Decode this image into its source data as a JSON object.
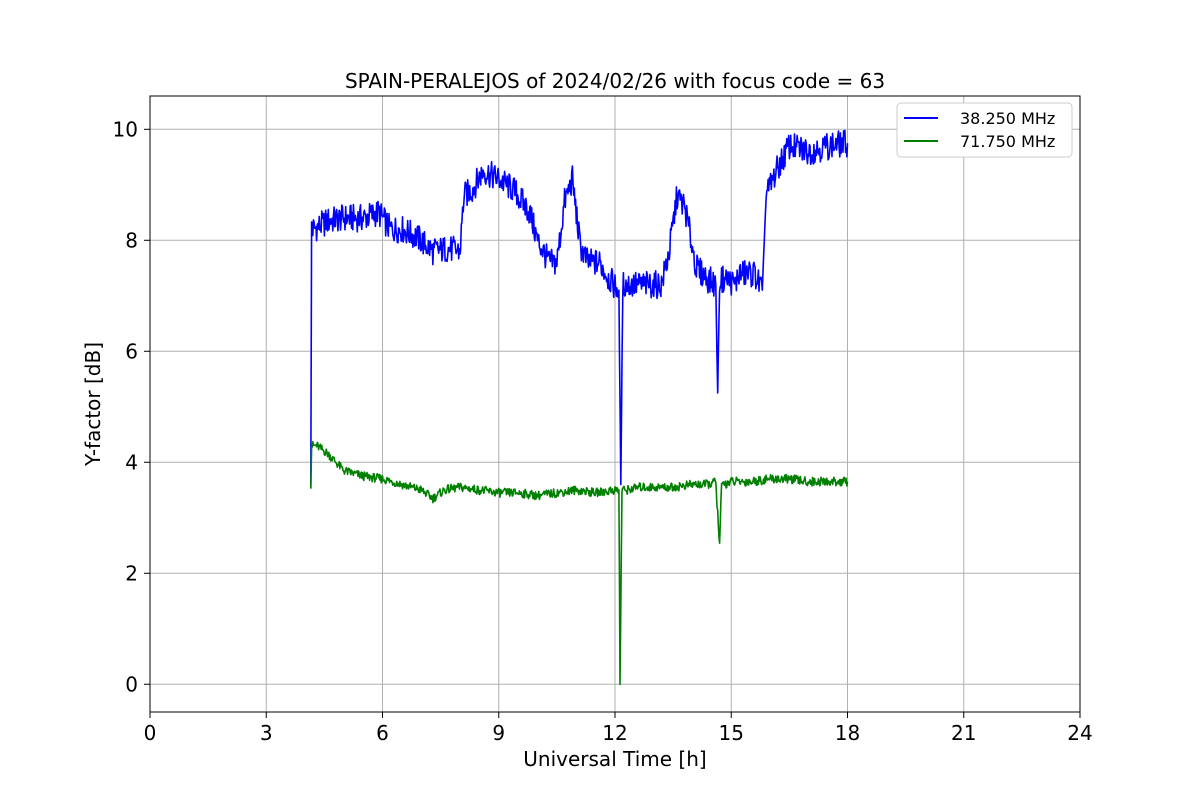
{
  "chart_data": {
    "type": "line",
    "title": "SPAIN-PERALEJOS of 2024/02/26 with focus code = 63",
    "xlabel": "Universal Time [h]",
    "ylabel": "Y-factor [dB]",
    "xlim": [
      0,
      24
    ],
    "ylim": [
      -0.5,
      10.6
    ],
    "xticks": [
      0,
      3,
      6,
      9,
      12,
      15,
      18,
      21,
      24
    ],
    "yticks": [
      0,
      2,
      4,
      6,
      8,
      10
    ],
    "grid": true,
    "legend_position": "top-right",
    "series": [
      {
        "name": "38.250 MHz",
        "color": "#0000ff",
        "x": [
          4.15,
          4.17,
          4.2,
          4.35,
          4.6,
          5.0,
          5.5,
          5.9,
          6.2,
          6.5,
          6.9,
          7.3,
          7.7,
          8.0,
          8.1,
          8.3,
          8.6,
          9.0,
          9.4,
          9.8,
          10.0,
          10.3,
          10.5,
          10.7,
          10.9,
          11.1,
          11.3,
          11.6,
          11.9,
          12.1,
          12.15,
          12.2,
          12.5,
          12.9,
          13.2,
          13.4,
          13.6,
          13.8,
          14.1,
          14.4,
          14.6,
          14.65,
          14.7,
          14.9,
          15.1,
          15.2,
          15.3,
          15.6,
          15.8,
          15.9,
          16.2,
          16.5,
          17.0,
          17.5,
          18.0
        ],
        "y": [
          3.55,
          8.3,
          8.2,
          8.25,
          8.35,
          8.4,
          8.4,
          8.5,
          8.2,
          8.2,
          8.05,
          7.8,
          7.85,
          7.8,
          8.8,
          8.9,
          9.25,
          9.1,
          8.9,
          8.5,
          8.0,
          7.6,
          7.6,
          8.7,
          9.1,
          7.9,
          7.6,
          7.6,
          7.25,
          7.1,
          3.6,
          7.2,
          7.2,
          7.2,
          7.2,
          7.8,
          8.8,
          8.6,
          7.5,
          7.3,
          7.2,
          5.25,
          7.3,
          7.3,
          7.2,
          7.4,
          7.4,
          7.4,
          7.1,
          8.8,
          9.3,
          9.7,
          9.6,
          9.7,
          9.75
        ]
      },
      {
        "name": "71.750 MHz",
        "color": "#008000",
        "x": [
          4.15,
          4.17,
          4.3,
          4.6,
          5.0,
          5.5,
          6.0,
          6.5,
          7.0,
          7.3,
          7.6,
          8.0,
          8.5,
          9.0,
          9.5,
          10.0,
          10.5,
          11.0,
          11.5,
          12.0,
          12.1,
          12.13,
          12.18,
          12.3,
          12.6,
          13.0,
          13.5,
          14.0,
          14.4,
          14.6,
          14.7,
          14.75,
          14.8,
          15.0,
          15.5,
          16.0,
          16.5,
          17.0,
          17.5,
          18.0
        ],
        "y": [
          3.6,
          4.3,
          4.3,
          4.15,
          3.85,
          3.75,
          3.7,
          3.6,
          3.5,
          3.35,
          3.5,
          3.55,
          3.5,
          3.45,
          3.45,
          3.4,
          3.45,
          3.5,
          3.45,
          3.5,
          3.5,
          0.0,
          3.5,
          3.5,
          3.55,
          3.55,
          3.55,
          3.6,
          3.6,
          3.65,
          2.5,
          3.6,
          3.6,
          3.65,
          3.65,
          3.7,
          3.7,
          3.65,
          3.65,
          3.65
        ]
      }
    ]
  }
}
